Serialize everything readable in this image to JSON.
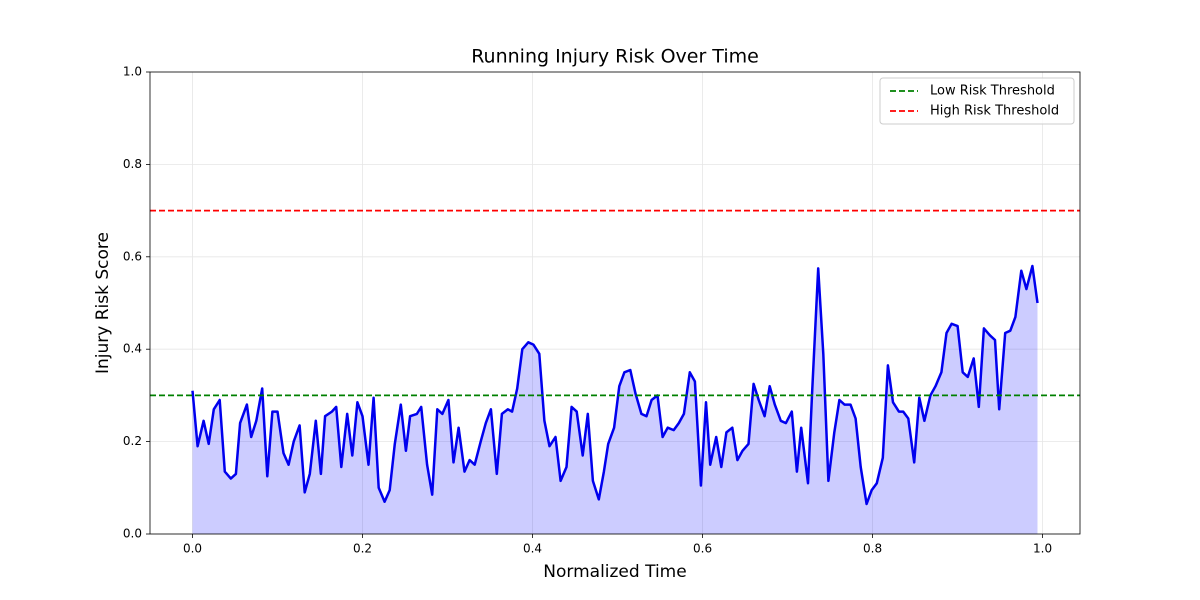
{
  "chart_data": {
    "type": "area-line",
    "title": "Running Injury Risk Over Time",
    "x_label": "Normalized Time",
    "y_label": "Injury Risk Score",
    "xlim": [
      -0.05,
      1.044
    ],
    "ylim": [
      0,
      1
    ],
    "xticks": [
      {
        "value": 0,
        "label": "0.0"
      },
      0.2,
      0.4,
      0.6,
      0.8,
      {
        "value": 1,
        "label": "1.0"
      }
    ],
    "yticks": [
      {
        "value": 0,
        "label": "0.0"
      },
      0.2,
      0.4,
      0.6,
      0.8,
      {
        "value": 1,
        "label": "1.0"
      }
    ],
    "grid": true,
    "legend_position": "upper-right",
    "x": [
      0,
      0.006,
      0.013,
      0.019,
      0.025,
      0.032,
      0.038,
      0.045,
      0.051,
      0.056,
      0.064,
      0.069,
      0.075,
      0.082,
      0.088,
      0.094,
      0.1,
      0.107,
      0.113,
      0.119,
      0.126,
      0.132,
      0.138,
      0.145,
      0.151,
      0.156,
      0.164,
      0.169,
      0.175,
      0.182,
      0.188,
      0.194,
      0.2,
      0.207,
      0.213,
      0.219,
      0.226,
      0.232,
      0.238,
      0.245,
      0.251,
      0.256,
      0.264,
      0.269,
      0.276,
      0.282,
      0.288,
      0.294,
      0.301,
      0.307,
      0.313,
      0.32,
      0.326,
      0.332,
      0.339,
      0.345,
      0.351,
      0.358,
      0.364,
      0.371,
      0.376,
      0.382,
      0.388,
      0.395,
      0.401,
      0.408,
      0.414,
      0.42,
      0.427,
      0.433,
      0.44,
      0.446,
      0.452,
      0.459,
      0.465,
      0.471,
      0.478,
      0.484,
      0.489,
      0.496,
      0.502,
      0.508,
      0.515,
      0.521,
      0.528,
      0.534,
      0.54,
      0.547,
      0.553,
      0.559,
      0.566,
      0.572,
      0.578,
      0.585,
      0.591,
      0.598,
      0.604,
      0.609,
      0.616,
      0.622,
      0.628,
      0.635,
      0.641,
      0.647,
      0.654,
      0.66,
      0.666,
      0.673,
      0.679,
      0.685,
      0.692,
      0.698,
      0.705,
      0.711,
      0.716,
      0.724,
      0.729,
      0.736,
      0.742,
      0.748,
      0.755,
      0.761,
      0.767,
      0.774,
      0.78,
      0.786,
      0.793,
      0.799,
      0.805,
      0.812,
      0.818,
      0.824,
      0.831,
      0.836,
      0.842,
      0.849,
      0.855,
      0.861,
      0.868,
      0.874,
      0.881,
      0.887,
      0.893,
      0.9,
      0.906,
      0.912,
      0.919,
      0.925,
      0.931,
      0.938,
      0.944,
      0.949,
      0.956,
      0.962,
      0.968,
      0.975,
      0.981,
      0.988,
      0.994
    ],
    "series": [
      {
        "color": "#0000ee",
        "fill_color": "#0000ff",
        "fill_opacity": 0.2,
        "values": [
          0.31,
          0.19,
          0.245,
          0.195,
          0.27,
          0.29,
          0.135,
          0.12,
          0.13,
          0.24,
          0.28,
          0.21,
          0.245,
          0.315,
          0.125,
          0.265,
          0.265,
          0.175,
          0.15,
          0.2,
          0.235,
          0.09,
          0.13,
          0.245,
          0.13,
          0.255,
          0.265,
          0.275,
          0.145,
          0.26,
          0.17,
          0.285,
          0.255,
          0.15,
          0.295,
          0.1,
          0.07,
          0.095,
          0.195,
          0.28,
          0.18,
          0.255,
          0.26,
          0.275,
          0.15,
          0.085,
          0.27,
          0.26,
          0.29,
          0.155,
          0.23,
          0.135,
          0.16,
          0.15,
          0.2,
          0.24,
          0.27,
          0.13,
          0.26,
          0.27,
          0.265,
          0.315,
          0.4,
          0.415,
          0.41,
          0.39,
          0.245,
          0.19,
          0.21,
          0.115,
          0.145,
          0.275,
          0.265,
          0.17,
          0.26,
          0.115,
          0.075,
          0.135,
          0.195,
          0.23,
          0.32,
          0.35,
          0.355,
          0.305,
          0.26,
          0.255,
          0.29,
          0.3,
          0.21,
          0.23,
          0.225,
          0.24,
          0.26,
          0.35,
          0.33,
          0.105,
          0.285,
          0.15,
          0.21,
          0.145,
          0.22,
          0.23,
          0.16,
          0.18,
          0.195,
          0.325,
          0.29,
          0.255,
          0.32,
          0.28,
          0.245,
          0.24,
          0.265,
          0.135,
          0.23,
          0.11,
          0.31,
          0.575,
          0.39,
          0.115,
          0.22,
          0.29,
          0.28,
          0.28,
          0.25,
          0.145,
          0.065,
          0.095,
          0.11,
          0.165,
          0.365,
          0.285,
          0.265,
          0.265,
          0.25,
          0.155,
          0.295,
          0.245,
          0.3,
          0.32,
          0.35,
          0.435,
          0.455,
          0.45,
          0.35,
          0.34,
          0.38,
          0.275,
          0.445,
          0.43,
          0.42,
          0.27,
          0.435,
          0.44,
          0.47,
          0.57,
          0.53,
          0.58,
          0.5
        ]
      }
    ],
    "thresholds": [
      {
        "name": "Low Risk Threshold",
        "value": 0.3,
        "color": "#008000"
      },
      {
        "name": "High Risk Threshold",
        "value": 0.7,
        "color": "#ff0000"
      }
    ]
  }
}
